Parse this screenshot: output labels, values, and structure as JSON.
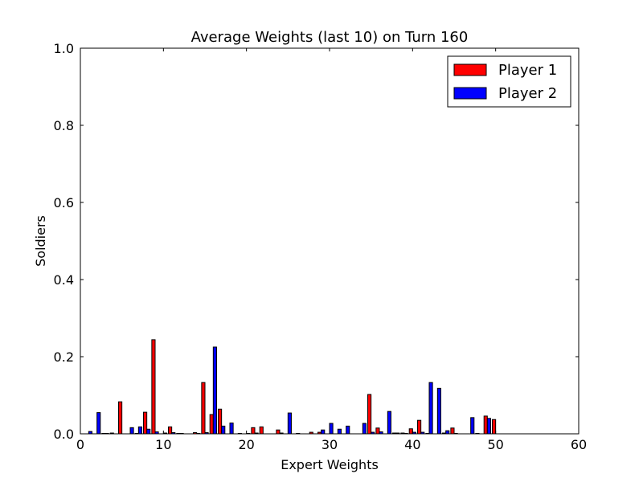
{
  "chart_data": {
    "type": "bar",
    "title": "Average Weights (last 10) on Turn 160",
    "xlabel": "Expert Weights",
    "ylabel": "Soldiers",
    "xlim": [
      0,
      60
    ],
    "ylim": [
      0,
      1.0
    ],
    "xticks": [
      "0",
      "10",
      "20",
      "30",
      "40",
      "50",
      "60"
    ],
    "yticks": [
      "0.0",
      "0.2",
      "0.4",
      "0.6",
      "0.8",
      "1.0"
    ],
    "grid": false,
    "legend_position": "top-right",
    "x": [
      1,
      2,
      3,
      4,
      5,
      6,
      7,
      8,
      9,
      10,
      11,
      12,
      13,
      14,
      15,
      16,
      17,
      18,
      19,
      20,
      21,
      22,
      23,
      24,
      25,
      26,
      27,
      28,
      29,
      30,
      31,
      32,
      33,
      34,
      35,
      36,
      37,
      38,
      39,
      40,
      41,
      42,
      43,
      44,
      45,
      46,
      47,
      48,
      49,
      50
    ],
    "series": [
      {
        "name": "Player 1",
        "color": "#ff0000",
        "values": [
          0,
          0,
          0.001,
          0.002,
          0.083,
          0,
          0.001,
          0.056,
          0.244,
          0,
          0.018,
          0.001,
          0,
          0.003,
          0.133,
          0.05,
          0.064,
          0,
          0,
          0,
          0.016,
          0.018,
          0,
          0.01,
          0,
          0,
          0,
          0.004,
          0.004,
          0,
          0,
          0,
          0,
          0,
          0.102,
          0.015,
          0,
          0.002,
          0.002,
          0.013,
          0.035,
          0.001,
          0,
          0.002,
          0.015,
          0,
          0,
          0.001,
          0.046,
          0.037
        ]
      },
      {
        "name": "Player 2",
        "color": "#0000ff",
        "values": [
          0.006,
          0.055,
          0.001,
          0,
          0,
          0.016,
          0.018,
          0.012,
          0.005,
          0.002,
          0.003,
          0.001,
          0,
          0.001,
          0.003,
          0.225,
          0.02,
          0.028,
          0.001,
          0.001,
          0.002,
          0,
          0,
          0.002,
          0.054,
          0.001,
          0,
          0,
          0.01,
          0.027,
          0.012,
          0.02,
          0,
          0.027,
          0.004,
          0.005,
          0.058,
          0.002,
          0.001,
          0.004,
          0.004,
          0.133,
          0.118,
          0.008,
          0.001,
          0,
          0.042,
          0,
          0.04,
          0
        ]
      }
    ]
  }
}
